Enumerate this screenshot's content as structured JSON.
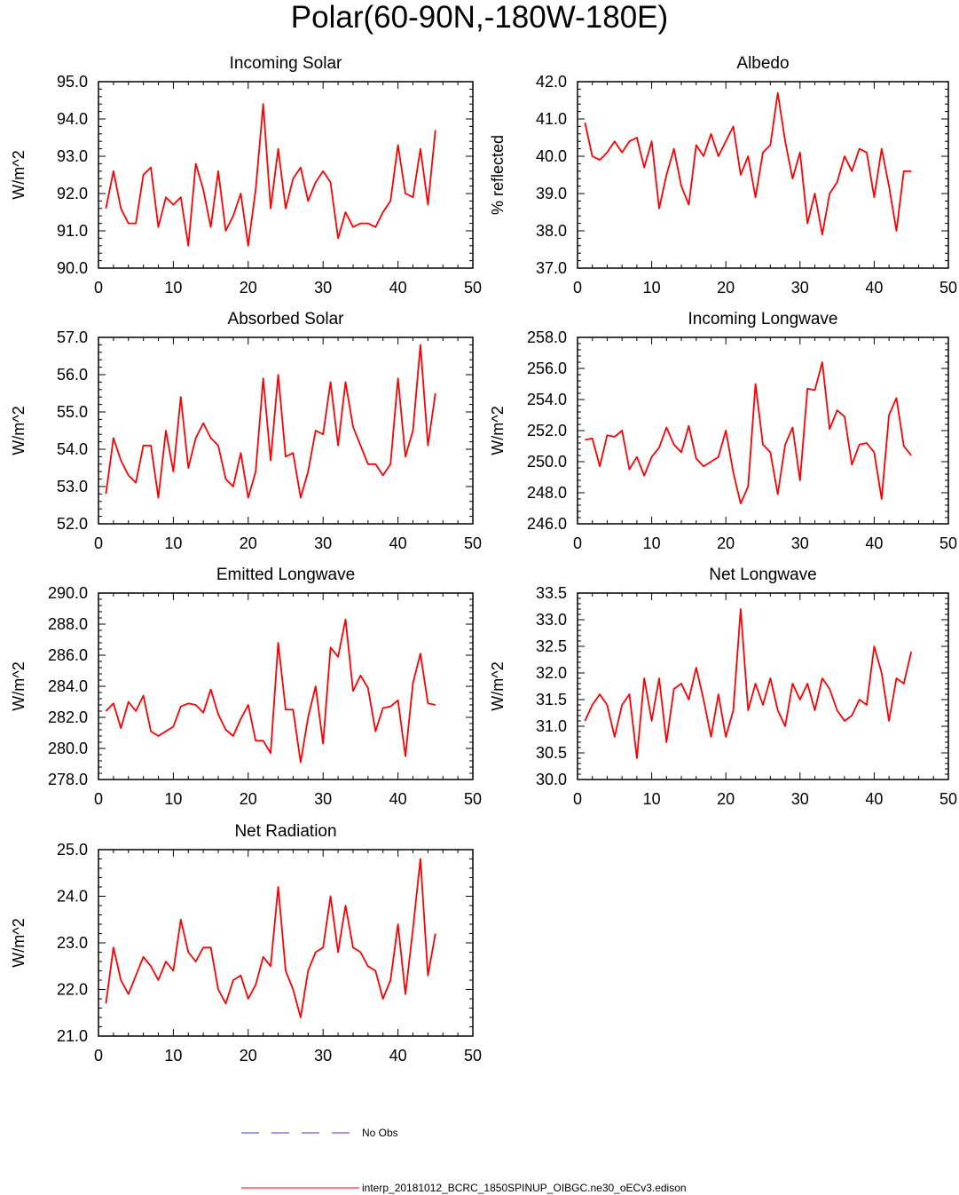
{
  "title": "Polar(60-90N,-180W-180E)",
  "colors": {
    "model_line": "#ff0000",
    "obs_line": "#3333ff",
    "axis": "#000000"
  },
  "legend": {
    "obs_label": "No Obs",
    "model_label": "interp_20181012_BCRC_1850SPINUP_OIBGC.ne30_oECv3.edison"
  },
  "chart_data": [
    {
      "type": "line",
      "title": "Incoming Solar",
      "ylabel": "W/m^2",
      "xlim": [
        0,
        50
      ],
      "ylim": [
        90.0,
        95.0
      ],
      "xticks": [
        0,
        10,
        20,
        30,
        40,
        50
      ],
      "xticklabels": [
        "0",
        "10",
        "20",
        "30",
        "40",
        "50"
      ],
      "yticks": [
        90.0,
        91.0,
        92.0,
        93.0,
        94.0,
        95.0
      ],
      "yticklabels": [
        "90.0",
        "91.0",
        "92.0",
        "93.0",
        "94.0",
        "95.0"
      ],
      "x": [
        1,
        2,
        3,
        4,
        5,
        6,
        7,
        8,
        9,
        10,
        11,
        12,
        13,
        14,
        15,
        16,
        17,
        18,
        19,
        20,
        21,
        22,
        23,
        24,
        25,
        26,
        27,
        28,
        29,
        30,
        31,
        32,
        33,
        34,
        35,
        36,
        37,
        38,
        39,
        40,
        41,
        42,
        43,
        44,
        45
      ],
      "values": [
        91.6,
        92.6,
        91.6,
        91.2,
        91.2,
        92.5,
        92.7,
        91.1,
        91.9,
        91.7,
        91.9,
        90.6,
        92.8,
        92.1,
        91.1,
        92.6,
        91.0,
        91.4,
        92.0,
        90.6,
        92.1,
        94.4,
        91.6,
        93.2,
        91.6,
        92.4,
        92.7,
        91.8,
        92.3,
        92.6,
        92.3,
        90.8,
        91.5,
        91.1,
        91.2,
        91.2,
        91.1,
        91.5,
        91.8,
        93.3,
        92.0,
        91.9,
        93.2,
        91.7,
        93.7
      ]
    },
    {
      "type": "line",
      "title": "Albedo",
      "ylabel": "% reflected",
      "xlim": [
        0,
        50
      ],
      "ylim": [
        37.0,
        42.0
      ],
      "xticks": [
        0,
        10,
        20,
        30,
        40,
        50
      ],
      "xticklabels": [
        "0",
        "10",
        "20",
        "30",
        "40",
        "50"
      ],
      "yticks": [
        37.0,
        38.0,
        39.0,
        40.0,
        41.0,
        42.0
      ],
      "yticklabels": [
        "37.0",
        "38.0",
        "39.0",
        "40.0",
        "41.0",
        "42.0"
      ],
      "x": [
        1,
        2,
        3,
        4,
        5,
        6,
        7,
        8,
        9,
        10,
        11,
        12,
        13,
        14,
        15,
        16,
        17,
        18,
        19,
        20,
        21,
        22,
        23,
        24,
        25,
        26,
        27,
        28,
        29,
        30,
        31,
        32,
        33,
        34,
        35,
        36,
        37,
        38,
        39,
        40,
        41,
        42,
        43,
        44,
        45
      ],
      "values": [
        40.9,
        40.0,
        39.9,
        40.1,
        40.4,
        40.1,
        40.4,
        40.5,
        39.7,
        40.4,
        38.6,
        39.5,
        40.2,
        39.2,
        38.7,
        40.3,
        40.0,
        40.6,
        40.0,
        40.4,
        40.8,
        39.5,
        40.0,
        38.9,
        40.1,
        40.3,
        41.7,
        40.4,
        39.4,
        40.1,
        38.2,
        39.0,
        37.9,
        39.0,
        39.3,
        40.0,
        39.6,
        40.2,
        40.1,
        38.9,
        40.2,
        39.2,
        38.0,
        39.6,
        39.6
      ]
    },
    {
      "type": "line",
      "title": "Absorbed Solar",
      "ylabel": "W/m^2",
      "xlim": [
        0,
        50
      ],
      "ylim": [
        52.0,
        57.0
      ],
      "xticks": [
        0,
        10,
        20,
        30,
        40,
        50
      ],
      "xticklabels": [
        "0",
        "10",
        "20",
        "30",
        "40",
        "50"
      ],
      "yticks": [
        52.0,
        53.0,
        54.0,
        55.0,
        56.0,
        57.0
      ],
      "yticklabels": [
        "52.0",
        "53.0",
        "54.0",
        "55.0",
        "56.0",
        "57.0"
      ],
      "x": [
        1,
        2,
        3,
        4,
        5,
        6,
        7,
        8,
        9,
        10,
        11,
        12,
        13,
        14,
        15,
        16,
        17,
        18,
        19,
        20,
        21,
        22,
        23,
        24,
        25,
        26,
        27,
        28,
        29,
        30,
        31,
        32,
        33,
        34,
        35,
        36,
        37,
        38,
        39,
        40,
        41,
        42,
        43,
        44,
        45
      ],
      "values": [
        52.8,
        54.3,
        53.7,
        53.3,
        53.1,
        54.1,
        54.1,
        52.7,
        54.5,
        53.4,
        55.4,
        53.5,
        54.3,
        54.7,
        54.3,
        54.1,
        53.2,
        53.0,
        53.9,
        52.7,
        53.4,
        55.9,
        53.7,
        56.0,
        53.8,
        53.9,
        52.7,
        53.4,
        54.5,
        54.4,
        55.8,
        54.1,
        55.8,
        54.6,
        54.1,
        53.6,
        53.6,
        53.3,
        53.6,
        55.9,
        53.8,
        54.5,
        56.8,
        54.1,
        55.5
      ]
    },
    {
      "type": "line",
      "title": "Incoming Longwave",
      "ylabel": "W/m^2",
      "xlim": [
        0,
        50
      ],
      "ylim": [
        246.0,
        258.0
      ],
      "xticks": [
        0,
        10,
        20,
        30,
        40,
        50
      ],
      "xticklabels": [
        "0",
        "10",
        "20",
        "30",
        "40",
        "50"
      ],
      "yticks": [
        246.0,
        248.0,
        250.0,
        252.0,
        254.0,
        256.0,
        258.0
      ],
      "yticklabels": [
        "246.0",
        "248.0",
        "250.0",
        "252.0",
        "254.0",
        "256.0",
        "258.0"
      ],
      "x": [
        1,
        2,
        3,
        4,
        5,
        6,
        7,
        8,
        9,
        10,
        11,
        12,
        13,
        14,
        15,
        16,
        17,
        18,
        19,
        20,
        21,
        22,
        23,
        24,
        25,
        26,
        27,
        28,
        29,
        30,
        31,
        32,
        33,
        34,
        35,
        36,
        37,
        38,
        39,
        40,
        41,
        42,
        43,
        44,
        45
      ],
      "values": [
        251.4,
        251.5,
        249.7,
        251.7,
        251.6,
        252.0,
        249.5,
        250.3,
        249.1,
        250.3,
        250.9,
        252.2,
        251.1,
        250.6,
        252.3,
        250.2,
        249.7,
        250.0,
        250.3,
        252.0,
        249.3,
        247.3,
        248.4,
        255.0,
        251.1,
        250.6,
        247.9,
        251.1,
        252.2,
        248.8,
        254.7,
        254.6,
        256.4,
        252.1,
        253.3,
        252.9,
        249.8,
        251.1,
        251.2,
        250.6,
        247.6,
        253.0,
        254.1,
        251.0,
        250.4
      ]
    },
    {
      "type": "line",
      "title": "Emitted Longwave",
      "ylabel": "W/m^2",
      "xlim": [
        0,
        50
      ],
      "ylim": [
        278.0,
        290.0
      ],
      "xticks": [
        0,
        10,
        20,
        30,
        40,
        50
      ],
      "xticklabels": [
        "0",
        "10",
        "20",
        "30",
        "40",
        "50"
      ],
      "yticks": [
        278.0,
        280.0,
        282.0,
        284.0,
        286.0,
        288.0,
        290.0
      ],
      "yticklabels": [
        "278.0",
        "280.0",
        "282.0",
        "284.0",
        "286.0",
        "288.0",
        "290.0"
      ],
      "x": [
        1,
        2,
        3,
        4,
        5,
        6,
        7,
        8,
        9,
        10,
        11,
        12,
        13,
        14,
        15,
        16,
        17,
        18,
        19,
        20,
        21,
        22,
        23,
        24,
        25,
        26,
        27,
        28,
        29,
        30,
        31,
        32,
        33,
        34,
        35,
        36,
        37,
        38,
        39,
        40,
        41,
        42,
        43,
        44,
        45
      ],
      "values": [
        282.4,
        282.9,
        281.3,
        283.0,
        282.4,
        283.4,
        281.1,
        280.8,
        281.1,
        281.4,
        282.7,
        282.9,
        282.8,
        282.3,
        283.8,
        282.2,
        281.2,
        280.8,
        281.9,
        282.8,
        280.5,
        280.5,
        279.7,
        286.8,
        282.5,
        282.5,
        279.1,
        282.0,
        284.0,
        280.3,
        286.5,
        285.9,
        288.3,
        283.7,
        284.7,
        283.9,
        281.1,
        282.6,
        282.7,
        283.1,
        279.5,
        284.2,
        286.1,
        282.9,
        282.8
      ]
    },
    {
      "type": "line",
      "title": "Net Longwave",
      "ylabel": "W/m^2",
      "xlim": [
        0,
        50
      ],
      "ylim": [
        30.0,
        33.5
      ],
      "xticks": [
        0,
        10,
        20,
        30,
        40,
        50
      ],
      "xticklabels": [
        "0",
        "10",
        "20",
        "30",
        "40",
        "50"
      ],
      "yticks": [
        30.0,
        30.5,
        31.0,
        31.5,
        32.0,
        32.5,
        33.0,
        33.5
      ],
      "yticklabels": [
        "30.0",
        "30.5",
        "31.0",
        "31.5",
        "32.0",
        "32.5",
        "33.0",
        "33.5"
      ],
      "x": [
        1,
        2,
        3,
        4,
        5,
        6,
        7,
        8,
        9,
        10,
        11,
        12,
        13,
        14,
        15,
        16,
        17,
        18,
        19,
        20,
        21,
        22,
        23,
        24,
        25,
        26,
        27,
        28,
        29,
        30,
        31,
        32,
        33,
        34,
        35,
        36,
        37,
        38,
        39,
        40,
        41,
        42,
        43,
        44,
        45
      ],
      "values": [
        31.1,
        31.4,
        31.6,
        31.4,
        30.8,
        31.4,
        31.6,
        30.4,
        31.9,
        31.1,
        31.9,
        30.7,
        31.7,
        31.8,
        31.5,
        32.1,
        31.5,
        30.8,
        31.6,
        30.8,
        31.3,
        33.2,
        31.3,
        31.8,
        31.4,
        31.9,
        31.3,
        31.0,
        31.8,
        31.5,
        31.8,
        31.3,
        31.9,
        31.7,
        31.3,
        31.1,
        31.2,
        31.5,
        31.4,
        32.5,
        32.0,
        31.1,
        31.9,
        31.8,
        32.4
      ]
    },
    {
      "type": "line",
      "title": "Net Radiation",
      "ylabel": "W/m^2",
      "xlim": [
        0,
        50
      ],
      "ylim": [
        21.0,
        25.0
      ],
      "xticks": [
        0,
        10,
        20,
        30,
        40,
        50
      ],
      "xticklabels": [
        "0",
        "10",
        "20",
        "30",
        "40",
        "50"
      ],
      "yticks": [
        21.0,
        22.0,
        23.0,
        24.0,
        25.0
      ],
      "yticklabels": [
        "21.0",
        "22.0",
        "23.0",
        "24.0",
        "25.0"
      ],
      "x": [
        1,
        2,
        3,
        4,
        5,
        6,
        7,
        8,
        9,
        10,
        11,
        12,
        13,
        14,
        15,
        16,
        17,
        18,
        19,
        20,
        21,
        22,
        23,
        24,
        25,
        26,
        27,
        28,
        29,
        30,
        31,
        32,
        33,
        34,
        35,
        36,
        37,
        38,
        39,
        40,
        41,
        42,
        43,
        44,
        45
      ],
      "values": [
        21.7,
        22.9,
        22.2,
        21.9,
        22.3,
        22.7,
        22.5,
        22.2,
        22.6,
        22.4,
        23.5,
        22.8,
        22.6,
        22.9,
        22.9,
        22.0,
        21.7,
        22.2,
        22.3,
        21.8,
        22.1,
        22.7,
        22.5,
        24.2,
        22.4,
        22.0,
        21.4,
        22.4,
        22.8,
        22.9,
        24.0,
        22.8,
        23.8,
        22.9,
        22.8,
        22.5,
        22.4,
        21.8,
        22.2,
        23.4,
        21.9,
        23.3,
        24.8,
        22.3,
        23.2
      ]
    }
  ]
}
